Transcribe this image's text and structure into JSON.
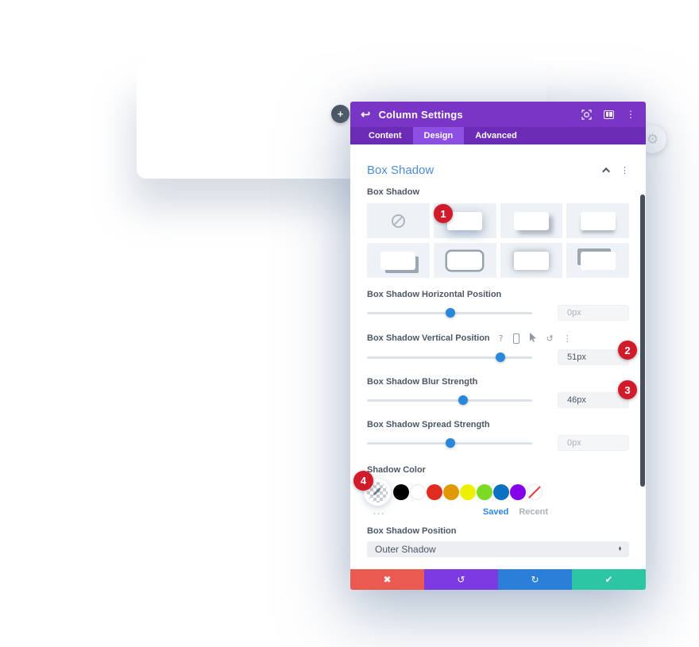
{
  "page": {
    "add_button_label": "+"
  },
  "modal": {
    "header": {
      "title": "Column Settings"
    },
    "tabs": [
      {
        "label": "Content"
      },
      {
        "label": "Design"
      },
      {
        "label": "Advanced"
      }
    ],
    "active_tab": "Design",
    "section": {
      "title": "Box Shadow"
    },
    "box_shadow": {
      "label": "Box Shadow",
      "presets": [
        {
          "key": "none",
          "selected": false
        },
        {
          "key": "soft-all",
          "selected": true
        },
        {
          "key": "soft-right-bottom",
          "selected": false
        },
        {
          "key": "soft-bottom",
          "selected": false
        },
        {
          "key": "hard-right-bottom",
          "selected": false
        },
        {
          "key": "outline",
          "selected": false
        },
        {
          "key": "glow",
          "selected": false
        },
        {
          "key": "hard-top-left",
          "selected": false
        }
      ]
    },
    "sliders": [
      {
        "label": "Box Shadow Horizontal Position",
        "value": "0px",
        "is_default": true,
        "percent": 50.5,
        "has_hover_icons": false
      },
      {
        "label": "Box Shadow Vertical Position",
        "value": "51px",
        "is_default": false,
        "percent": 81,
        "has_hover_icons": true
      },
      {
        "label": "Box Shadow Blur Strength",
        "value": "46px",
        "is_default": false,
        "percent": 58,
        "has_hover_icons": false
      },
      {
        "label": "Box Shadow Spread Strength",
        "value": "0px",
        "is_default": true,
        "percent": 50.5,
        "has_hover_icons": false
      }
    ],
    "shadow_color": {
      "label": "Shadow Color",
      "selected_swatch": "transparent-eyedropper",
      "swatches": [
        "#000000",
        "#FFFFFF",
        "#E02B20",
        "#E09900",
        "#EDF000",
        "#7CDA24",
        "#0C71C3",
        "#8300E9"
      ],
      "none_swatch_label": "no-color",
      "more_label": "...",
      "saved_label": "Saved",
      "recent_label": "Recent"
    },
    "position_field": {
      "label": "Box Shadow Position",
      "value": "Outer Shadow"
    },
    "colors": {
      "accent_blue": "#2b87da",
      "header_purple": "#7936c6",
      "badge_red": "#d11b2b"
    }
  },
  "badges": [
    {
      "number": "1"
    },
    {
      "number": "2"
    },
    {
      "number": "3"
    },
    {
      "number": "4"
    }
  ]
}
